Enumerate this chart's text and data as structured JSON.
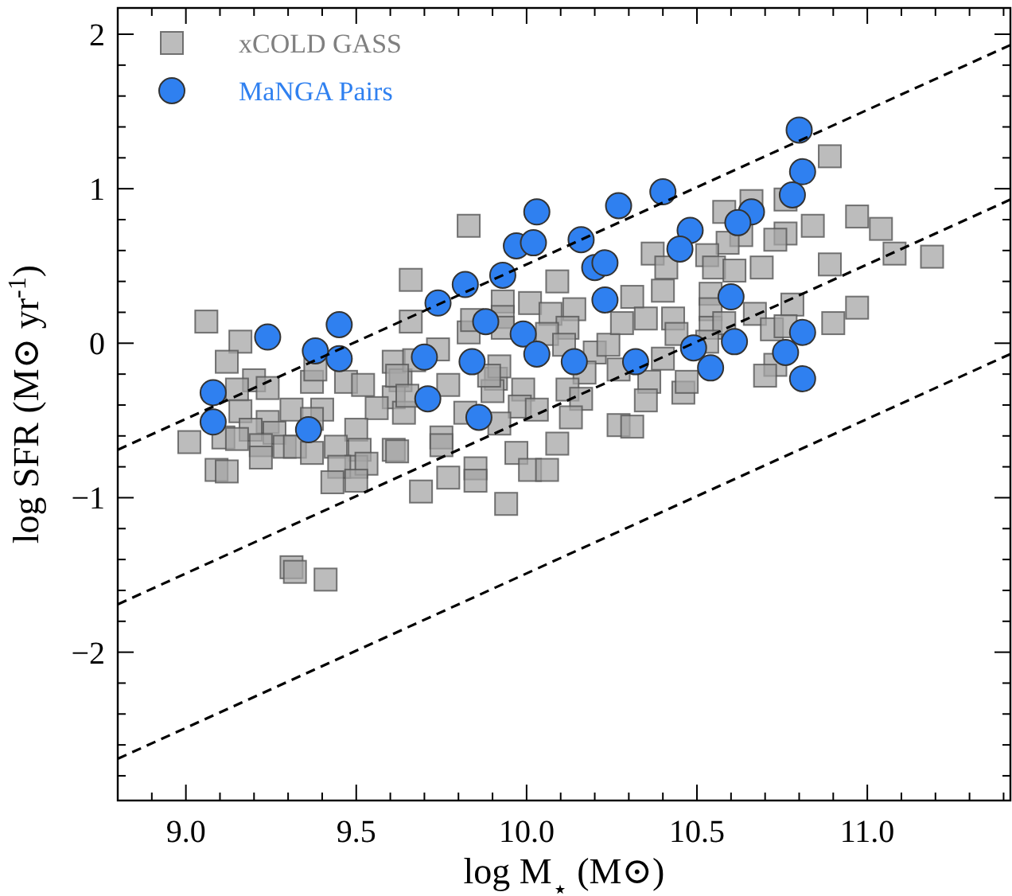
{
  "chart_data": {
    "type": "scatter",
    "xlabel": "log M$_{⋆}$ (M⊙)",
    "ylabel": "log SFR (M⊙ yr$^{-1}$)",
    "xlim": [
      8.8,
      11.42
    ],
    "ylim": [
      -2.96,
      2.17
    ],
    "legend": "top left",
    "grid": false,
    "xticks": [
      {
        "value": 8.9,
        "label": null
      },
      {
        "value": 9,
        "label": "9.0"
      },
      {
        "value": 9.1,
        "label": null
      },
      {
        "value": 9.2,
        "label": null
      },
      {
        "value": 9.3,
        "label": null
      },
      {
        "value": 9.4,
        "label": null
      },
      {
        "value": 9.5,
        "label": "9.5"
      },
      {
        "value": 9.6,
        "label": null
      },
      {
        "value": 9.7,
        "label": null
      },
      {
        "value": 9.8,
        "label": null
      },
      {
        "value": 9.9,
        "label": null
      },
      {
        "value": 10,
        "label": "10.0"
      },
      {
        "value": 10.1,
        "label": null
      },
      {
        "value": 10.2,
        "label": null
      },
      {
        "value": 10.3,
        "label": null
      },
      {
        "value": 10.4,
        "label": null
      },
      {
        "value": 10.5,
        "label": "10.5"
      },
      {
        "value": 10.6,
        "label": null
      },
      {
        "value": 10.7,
        "label": null
      },
      {
        "value": 10.8,
        "label": null
      },
      {
        "value": 10.9,
        "label": null
      },
      {
        "value": 11,
        "label": "11.0"
      },
      {
        "value": 11.1,
        "label": null
      },
      {
        "value": 11.2,
        "label": null
      },
      {
        "value": 11.3,
        "label": null
      },
      {
        "value": 11.4,
        "label": null
      }
    ],
    "yticks": [
      {
        "value": -2.8,
        "label": null
      },
      {
        "value": -2.6,
        "label": null
      },
      {
        "value": -2.4,
        "label": null
      },
      {
        "value": -2.2,
        "label": null
      },
      {
        "value": -2,
        "label": "−2"
      },
      {
        "value": -1.8,
        "label": null
      },
      {
        "value": -1.6,
        "label": null
      },
      {
        "value": -1.4,
        "label": null
      },
      {
        "value": -1.2,
        "label": null
      },
      {
        "value": -1,
        "label": "−1"
      },
      {
        "value": -0.8,
        "label": null
      },
      {
        "value": -0.6,
        "label": null
      },
      {
        "value": -0.4,
        "label": null
      },
      {
        "value": -0.2,
        "label": null
      },
      0,
      {
        "value": 0.2,
        "label": null
      },
      {
        "value": 0.4,
        "label": null
      },
      {
        "value": 0.6,
        "label": null
      },
      {
        "value": 0.8,
        "label": null
      },
      1,
      {
        "value": 1.2,
        "label": null
      },
      {
        "value": 1.4,
        "label": null
      },
      {
        "value": 1.6,
        "label": null
      },
      {
        "value": 1.8,
        "label": null
      },
      2
    ],
    "series": [
      {
        "name": "xCOLD GASS",
        "color": "#a6a6a6",
        "marker": "square",
        "x": [
          9.06,
          9.66,
          9.16,
          9.12,
          9.66,
          9.2,
          9.15,
          9.24,
          9.37,
          9.38,
          9.47,
          9.52,
          9.61,
          9.63,
          9.61,
          9.56,
          9.64,
          9.16,
          9.31,
          9.4,
          9.37,
          9.24,
          9.19,
          9.26,
          9.11,
          9.01,
          9.15,
          9.29,
          9.22,
          9.22,
          9.32,
          9.37,
          9.5,
          9.44,
          9.51,
          9.61,
          9.5,
          9.53,
          9.45,
          9.43,
          9.5,
          9.09,
          9.12,
          9.31,
          9.32,
          9.41,
          9.83,
          10.09,
          10.37,
          10.41,
          10.4,
          9.93,
          10.01,
          10.07,
          10.14,
          10.12,
          9.93,
          9.83,
          9.84,
          9.93,
          10.06,
          10.11,
          10.2,
          10.24,
          10.28,
          10.31,
          10.35,
          10.43,
          10.44,
          10.4,
          10.27,
          10.36,
          10.35,
          10.46,
          10.17,
          10.12,
          10.16,
          10.13,
          9.99,
          9.98,
          10.03,
          9.91,
          9.9,
          9.92,
          9.89,
          9.77,
          9.74,
          9.67,
          9.62,
          9.65,
          9.82,
          9.92,
          10.27,
          10.31,
          9.75,
          9.75,
          9.62,
          10.09,
          9.97,
          9.85,
          9.85,
          9.77,
          10.01,
          10.06,
          9.69,
          9.94,
          10.89,
          10.66,
          10.76,
          10.58,
          10.84,
          10.97,
          11.04,
          10.76,
          10.73,
          10.63,
          10.59,
          11.08,
          11.19,
          10.53,
          10.55,
          10.61,
          10.69,
          10.89,
          10.54,
          10.67,
          10.78,
          10.97,
          10.9,
          10.54,
          10.54,
          10.58,
          10.72,
          10.76,
          10.53,
          10.73,
          10.7,
          10.47
        ],
        "values": [
          0.14,
          0.41,
          0.01,
          -0.12,
          0.14,
          -0.24,
          -0.3,
          -0.29,
          -0.25,
          -0.17,
          -0.25,
          -0.27,
          -0.12,
          -0.24,
          -0.35,
          -0.42,
          -0.45,
          -0.44,
          -0.43,
          -0.43,
          -0.49,
          -0.51,
          -0.56,
          -0.58,
          -0.61,
          -0.64,
          -0.62,
          -0.67,
          -0.66,
          -0.74,
          -0.67,
          -0.71,
          -0.56,
          -0.67,
          -0.69,
          -0.69,
          -0.8,
          -0.78,
          -0.8,
          -0.9,
          -0.89,
          -0.82,
          -0.83,
          -1.45,
          -1.48,
          -1.53,
          0.76,
          0.4,
          0.58,
          0.49,
          0.34,
          0.27,
          0.26,
          0.19,
          0.22,
          0.1,
          0.17,
          0.07,
          0.15,
          0.1,
          0.06,
          -0.01,
          -0.06,
          -0.01,
          0.13,
          0.3,
          0.16,
          0.16,
          0.06,
          -0.1,
          -0.17,
          -0.25,
          -0.37,
          -0.32,
          -0.19,
          -0.3,
          -0.36,
          -0.48,
          -0.3,
          -0.41,
          -0.43,
          -0.23,
          -0.31,
          -0.15,
          -0.21,
          -0.27,
          -0.04,
          -0.11,
          -0.21,
          -0.34,
          -0.45,
          -0.52,
          -0.53,
          -0.54,
          -0.61,
          -0.66,
          -0.7,
          -0.65,
          -0.71,
          -0.81,
          -0.89,
          -0.87,
          -0.82,
          -0.82,
          -0.96,
          -1.04,
          1.21,
          0.92,
          0.93,
          0.85,
          0.76,
          0.82,
          0.74,
          0.71,
          0.67,
          0.7,
          0.65,
          0.58,
          0.56,
          0.57,
          0.49,
          0.47,
          0.49,
          0.51,
          0.32,
          0.19,
          0.25,
          0.23,
          0.13,
          0.22,
          0.1,
          0.13,
          0.09,
          0.11,
          0.01,
          -0.14,
          -0.21,
          -0.25
        ]
      },
      {
        "name": "MaNGA Pairs",
        "color": "#2f80f0",
        "marker": "circle",
        "x": [
          9.24,
          9.45,
          9.38,
          9.45,
          9.08,
          9.08,
          9.36,
          10.03,
          10.27,
          10.4,
          9.97,
          10.02,
          10.16,
          10.2,
          10.23,
          9.93,
          9.82,
          9.74,
          10.23,
          9.88,
          9.99,
          10.03,
          9.7,
          9.84,
          10.14,
          10.32,
          9.71,
          9.86,
          10.8,
          10.81,
          10.78,
          10.66,
          10.62,
          10.48,
          10.45,
          10.6,
          10.81,
          10.61,
          10.49,
          10.76,
          10.54,
          10.81
        ],
        "values": [
          0.04,
          0.12,
          -0.05,
          -0.1,
          -0.32,
          -0.51,
          -0.56,
          0.85,
          0.89,
          0.98,
          0.63,
          0.65,
          0.67,
          0.49,
          0.52,
          0.44,
          0.38,
          0.26,
          0.28,
          0.14,
          0.06,
          -0.07,
          -0.09,
          -0.12,
          -0.12,
          -0.12,
          -0.36,
          -0.48,
          1.38,
          1.11,
          0.96,
          0.85,
          0.78,
          0.73,
          0.61,
          0.3,
          0.07,
          0.01,
          -0.03,
          -0.06,
          -0.16,
          -0.23
        ]
      },
      {
        "type": "line",
        "color": "#000000",
        "line_style": "dashed",
        "marker": "none",
        "x": [
          8.8,
          11.42
        ],
        "values": [
          -0.69,
          1.93
        ]
      },
      {
        "type": "line",
        "color": "#000000",
        "line_style": "dashed",
        "marker": "none",
        "x": [
          8.8,
          11.42
        ],
        "values": [
          -1.69,
          0.93
        ]
      },
      {
        "type": "line",
        "color": "#000000",
        "line_style": "dashed",
        "marker": "none",
        "x": [
          8.8,
          11.42
        ],
        "values": [
          -2.69,
          -0.07
        ]
      }
    ]
  }
}
